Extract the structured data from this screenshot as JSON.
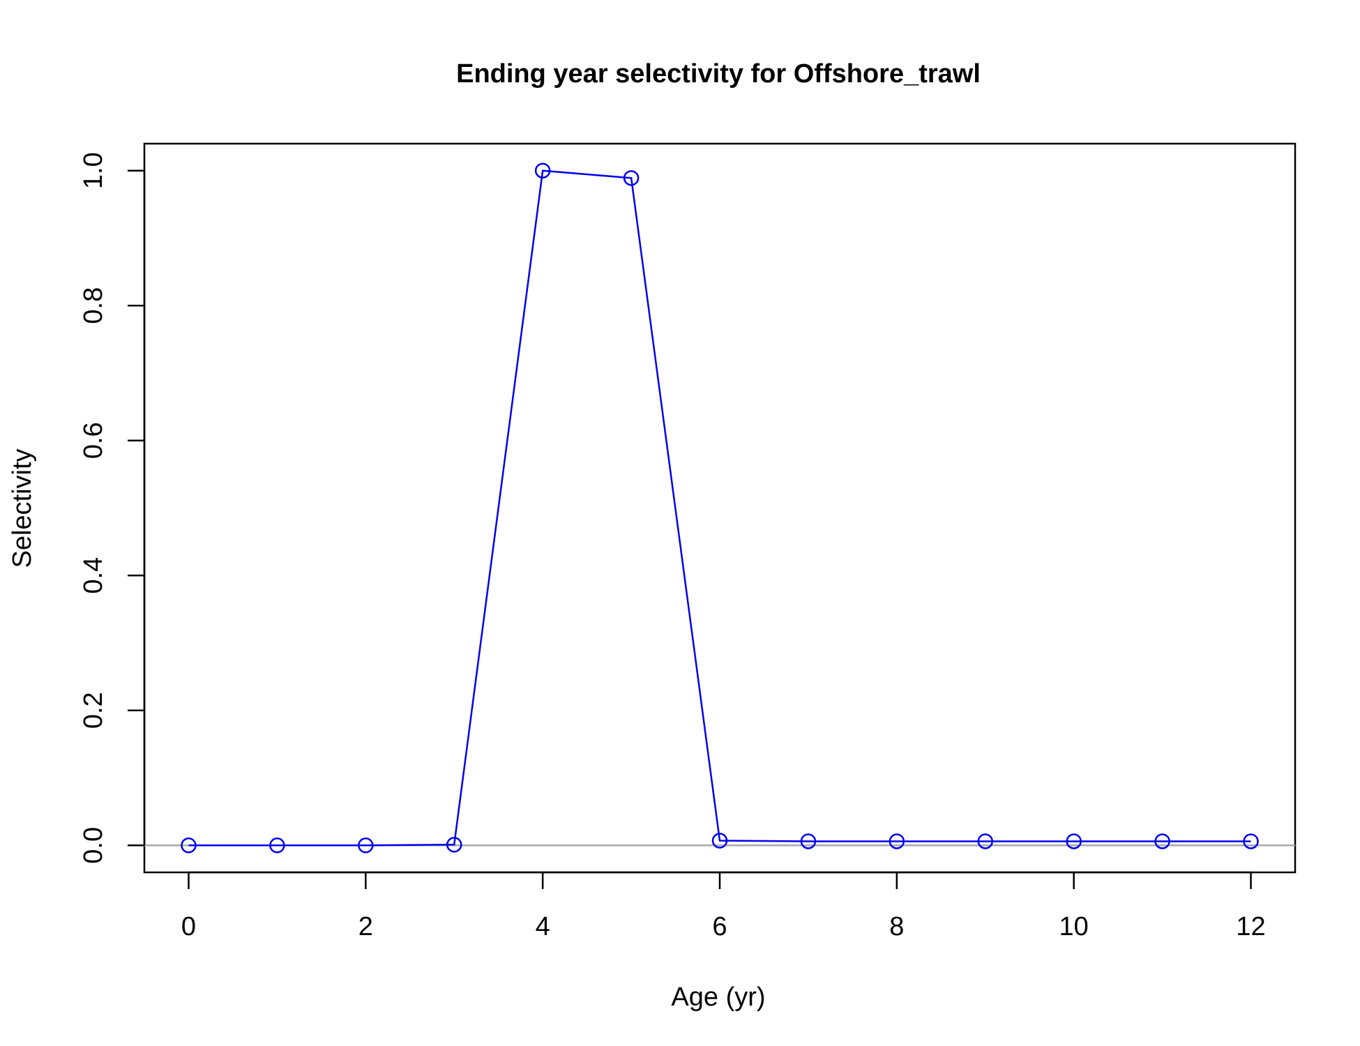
{
  "chart_data": {
    "type": "line",
    "title": "Ending year selectivity for Offshore_trawl",
    "xlabel": "Age (yr)",
    "ylabel": "Selectivity",
    "xlim": [
      -0.5,
      12.5
    ],
    "ylim": [
      -0.04,
      1.04
    ],
    "xticks": [
      0,
      2,
      4,
      6,
      8,
      10,
      12
    ],
    "xtick_labels": [
      "0",
      "2",
      "4",
      "6",
      "8",
      "10",
      "12"
    ],
    "yticks": [
      0.0,
      0.2,
      0.4,
      0.6,
      0.8,
      1.0
    ],
    "ytick_labels": [
      "0.0",
      "0.2",
      "0.4",
      "0.6",
      "0.8",
      "1.0"
    ],
    "reference_line_y": 0,
    "reference_line_color": "#aaaaaa",
    "grid": false,
    "legend": "none",
    "series": [
      {
        "color": "#0000ee",
        "marker": "open-circle",
        "x": [
          0,
          1,
          2,
          3,
          4,
          5,
          6,
          7,
          8,
          9,
          10,
          11,
          12
        ],
        "y": [
          0.0,
          0.0,
          0.0,
          0.001,
          1.0,
          0.989,
          0.007,
          0.006,
          0.006,
          0.006,
          0.006,
          0.006,
          0.006
        ]
      }
    ]
  }
}
